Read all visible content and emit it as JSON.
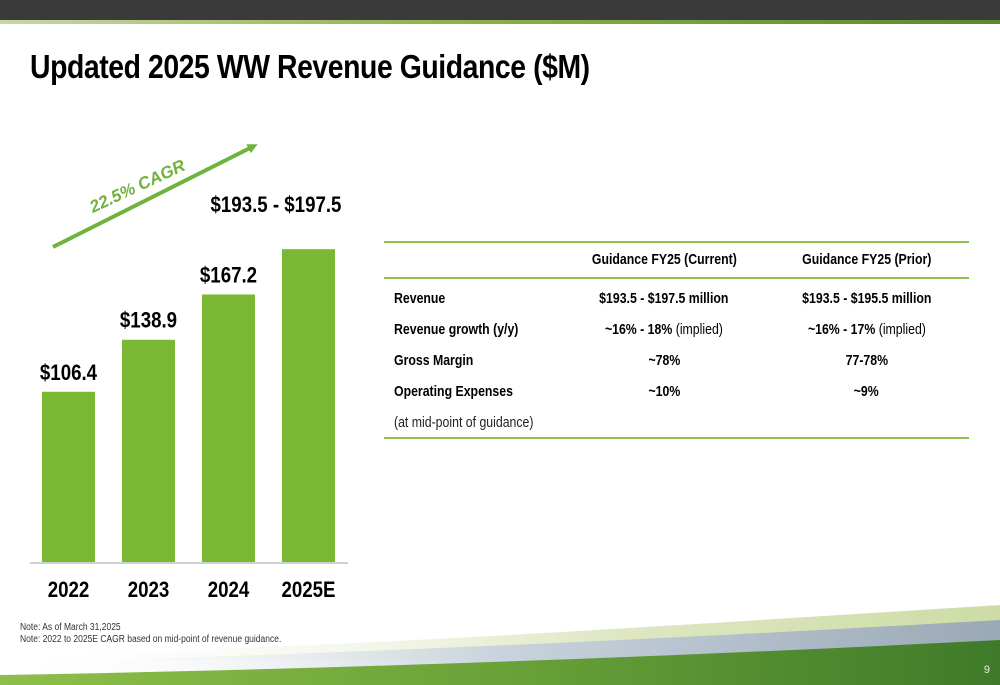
{
  "title": "Updated 2025 WW Revenue Guidance ($M)",
  "chart_data": {
    "type": "bar",
    "categories": [
      "2022",
      "2023",
      "2024",
      "2025E"
    ],
    "values": [
      106.4,
      138.9,
      167.2,
      195.5
    ],
    "labels": [
      "$106.4",
      "$138.9",
      "$167.2",
      "$193.5 - $197.5"
    ],
    "annotation": "22.5% CAGR",
    "bar_color": "#7ab833",
    "arrow_color": "#6fb23c",
    "ylim": [
      0,
      200
    ],
    "title": "",
    "xlabel": "",
    "ylabel": ""
  },
  "table": {
    "headers": [
      "",
      "Guidance FY25 (Current)",
      "Guidance FY25 (Prior)"
    ],
    "rows": [
      {
        "label": "Revenue",
        "current": "$193.5 - $197.5 million",
        "current_suffix": "",
        "prior": "$193.5 - $195.5 million",
        "prior_suffix": ""
      },
      {
        "label": "Revenue growth (y/y)",
        "current": "~16% - 18%",
        "current_suffix": " (implied)",
        "prior": "~16% - 17%",
        "prior_suffix": " (implied)"
      },
      {
        "label": "Gross Margin",
        "current": "~78%",
        "current_suffix": "",
        "prior": "77-78%",
        "prior_suffix": ""
      },
      {
        "label": "Operating Expenses",
        "current": "~10%",
        "current_suffix": "",
        "prior": "~9%",
        "prior_suffix": ""
      }
    ],
    "note": "(at mid-point of guidance)",
    "rule_color": "#8bc34a"
  },
  "footnotes": [
    "Note: As of March 31,2025",
    "Note: 2022 to 2025E CAGR based on mid-point of revenue guidance."
  ],
  "page_number": "9"
}
